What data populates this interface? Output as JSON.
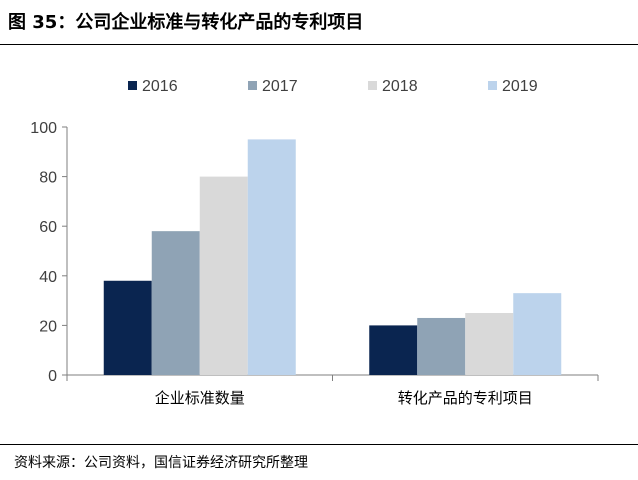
{
  "figure": {
    "title": "图 35：公司企业标准与转化产品的专利项目",
    "source": "资料来源：公司资料，国信证券经济研究所整理"
  },
  "chart_data": {
    "type": "bar",
    "categories": [
      "企业标准数量",
      "转化产品的专利项目"
    ],
    "series": [
      {
        "name": "2016",
        "values": [
          38,
          20
        ],
        "color": "#0a2550"
      },
      {
        "name": "2017",
        "values": [
          58,
          23
        ],
        "color": "#8fa3b5"
      },
      {
        "name": "2018",
        "values": [
          80,
          25
        ],
        "color": "#d9d9d9"
      },
      {
        "name": "2019",
        "values": [
          95,
          33
        ],
        "color": "#bcd3ec"
      }
    ],
    "yticks": [
      0,
      20,
      40,
      60,
      80,
      100
    ],
    "ylim": [
      0,
      100
    ],
    "grid": false,
    "legend": "top-center"
  }
}
